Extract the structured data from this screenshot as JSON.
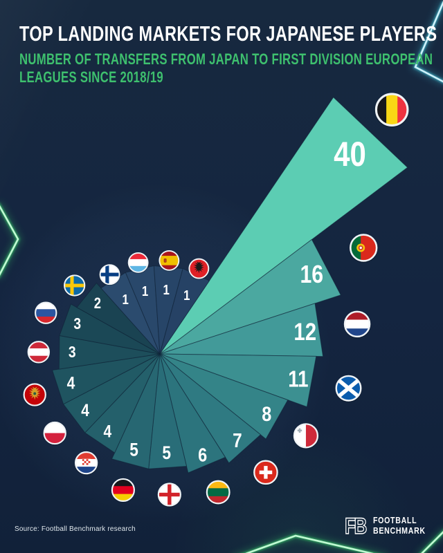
{
  "header": {
    "title": "TOP LANDING MARKETS FOR JAPANESE PLAYERS",
    "subtitle_line1": "NUMBER OF TRANSFERS FROM JAPAN TO FIRST DIVISION EUROPEAN",
    "subtitle_line2": "LEAGUES SINCE 2018/19"
  },
  "footer": {
    "source": "Source: Football Benchmark research",
    "brand": {
      "monogram": "FB",
      "line1": "FOOTBALL",
      "line2": "BENCHMARK"
    }
  },
  "theme": {
    "background": "#142540",
    "title_color": "#FFFFFF",
    "subtitle_color": "#3EC06E",
    "value_label_color": "#FFFFFF",
    "neon_green": "#3FE573",
    "neon_cyan": "#49D7EC",
    "flag_ring_color": "#EFF3F6"
  },
  "chart_data": {
    "type": "pie",
    "variant": "spiral-rose-pinwheel",
    "title": "Top landing markets for Japanese players",
    "unit": "transfers since 2018/19",
    "direction": "clockwise",
    "start_angle_deg": 46.5,
    "wedge_span_deg": 18.947,
    "legend_position": "none",
    "grid": false,
    "categories": [
      "Belgium",
      "Portugal",
      "Netherlands",
      "Scotland",
      "Malta",
      "Switzerland",
      "Lithuania",
      "England",
      "Germany",
      "Croatia",
      "Poland",
      "Montenegro",
      "Austria",
      "Russia",
      "Sweden",
      "Finland",
      "Luxembourg",
      "Spain",
      "Albania"
    ],
    "values": [
      40,
      16,
      12,
      11,
      8,
      7,
      6,
      5,
      5,
      4,
      4,
      4,
      3,
      3,
      2,
      1,
      1,
      1,
      1
    ],
    "items": [
      {
        "country": "Belgium",
        "slug": "belgium",
        "value": 40,
        "color": "#5CCDB3",
        "icon": "belgium-flag-icon"
      },
      {
        "country": "Portugal",
        "slug": "portugal",
        "value": 16,
        "color": "#4BA8A0",
        "icon": "portugal-flag-icon"
      },
      {
        "country": "Netherlands",
        "slug": "netherlands",
        "value": 12,
        "color": "#429A99",
        "icon": "netherlands-flag-icon"
      },
      {
        "country": "Scotland",
        "slug": "scotland",
        "value": 11,
        "color": "#3C9091",
        "icon": "scotland-flag-icon"
      },
      {
        "country": "Malta",
        "slug": "malta",
        "value": 8,
        "color": "#348488",
        "icon": "malta-flag-icon"
      },
      {
        "country": "Switzerland",
        "slug": "switzerland",
        "value": 7,
        "color": "#2F7A82",
        "icon": "switzerland-flag-icon"
      },
      {
        "country": "Lithuania",
        "slug": "lithuania",
        "value": 6,
        "color": "#2C747D",
        "icon": "lithuania-flag-icon"
      },
      {
        "country": "England",
        "slug": "england",
        "value": 5,
        "color": "#296D78",
        "icon": "england-flag-icon"
      },
      {
        "country": "Germany",
        "slug": "germany",
        "value": 5,
        "color": "#276772",
        "icon": "germany-flag-icon"
      },
      {
        "country": "Croatia",
        "slug": "croatia",
        "value": 4,
        "color": "#24606B",
        "icon": "croatia-flag-icon"
      },
      {
        "country": "Poland",
        "slug": "poland",
        "value": 4,
        "color": "#215A65",
        "icon": "poland-flag-icon"
      },
      {
        "country": "Montenegro",
        "slug": "montenegro",
        "value": 4,
        "color": "#1F5460",
        "icon": "montenegro-flag-icon"
      },
      {
        "country": "Austria",
        "slug": "austria",
        "value": 3,
        "color": "#1D4E5B",
        "icon": "austria-flag-icon"
      },
      {
        "country": "Russia",
        "slug": "russia",
        "value": 3,
        "color": "#1B4856",
        "icon": "russia-flag-icon"
      },
      {
        "country": "Sweden",
        "slug": "sweden",
        "value": 2,
        "color": "#1A4352",
        "icon": "sweden-flag-icon"
      },
      {
        "country": "Finland",
        "slug": "finland",
        "value": 1,
        "color": "#2B4B6E",
        "icon": "finland-flag-icon"
      },
      {
        "country": "Luxembourg",
        "slug": "luxembourg",
        "value": 1,
        "color": "#29486B",
        "icon": "luxembourg-flag-icon"
      },
      {
        "country": "Spain",
        "slug": "spain",
        "value": 1,
        "color": "#274568",
        "icon": "spain-flag-icon"
      },
      {
        "country": "Albania",
        "slug": "albania",
        "value": 1,
        "color": "#264265",
        "icon": "albania-flag-icon"
      }
    ]
  }
}
